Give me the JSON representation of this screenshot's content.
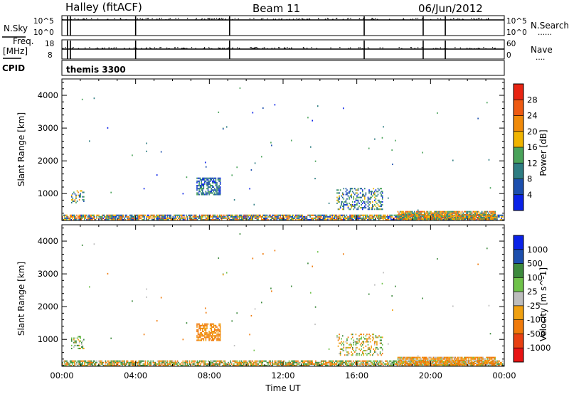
{
  "header": {
    "station": "Halley (fitACF)",
    "beam": "Beam 11",
    "date": "06/Jun/2012"
  },
  "status_panels": {
    "nsky_label": "N.Sky",
    "nsky_ticks": [
      "10^5",
      "10^0"
    ],
    "nsearch_label": "N.Search",
    "nsearch_ticks": [
      "10^5",
      "10^0"
    ],
    "freq_label": "Freq.",
    "freq_unit": "[MHz]",
    "freq_ticks": [
      "18",
      "8"
    ],
    "nave_label": "Nave",
    "nave_ticks": [
      "60",
      "0"
    ],
    "cpid_label": "CPID",
    "program": "themis 3300",
    "legend_dots": "......",
    "legend_dots_short": "...."
  },
  "chart_data": [
    {
      "type": "heatmap",
      "title": "",
      "quantity": "Power",
      "xlabel": "Time UT",
      "ylabel": "Slant Range [km]",
      "xlim_hours": [
        0,
        24
      ],
      "x_tick_labels": [
        "00:00",
        "04:00",
        "08:00",
        "12:00",
        "16:00",
        "20:00",
        "00:00"
      ],
      "ylim_km": [
        180,
        4500
      ],
      "y_ticks": [
        1000,
        2000,
        3000,
        4000
      ],
      "colorbar": {
        "label": "Power [dB]",
        "ticks": [
          "4",
          "8",
          "12",
          "16",
          "20",
          "24",
          "28"
        ],
        "colors": [
          "#0a22e8",
          "#1c4fae",
          "#2e7d82",
          "#4aa35a",
          "#f0b400",
          "#f08a0a",
          "#ee5a12",
          "#e82412"
        ]
      },
      "scatter_regions": [
        {
          "t_start": 0.0,
          "t_end": 23.9,
          "r_start": 180,
          "r_end": 330,
          "value_range": [
            2,
            28
          ],
          "density": 0.8
        },
        {
          "t_start": 7.3,
          "t_end": 8.6,
          "r_start": 950,
          "r_end": 1450,
          "value_range": [
            2,
            14
          ],
          "density": 0.65
        },
        {
          "t_start": 14.9,
          "t_end": 17.4,
          "r_start": 500,
          "r_end": 1150,
          "value_range": [
            2,
            18
          ],
          "density": 0.35
        },
        {
          "t_start": 18.2,
          "t_end": 23.5,
          "r_start": 200,
          "r_end": 460,
          "value_range": [
            8,
            28
          ],
          "density": 0.85
        },
        {
          "t_start": 0.5,
          "t_end": 1.2,
          "r_start": 700,
          "r_end": 1100,
          "value_range": [
            4,
            22
          ],
          "density": 0.35
        }
      ]
    },
    {
      "type": "heatmap",
      "title": "",
      "quantity": "Velocity",
      "xlabel": "Time UT",
      "ylabel": "Slant Range [km]",
      "xlim_hours": [
        0,
        24
      ],
      "x_tick_labels": [
        "00:00",
        "04:00",
        "08:00",
        "12:00",
        "16:00",
        "20:00",
        "00:00"
      ],
      "ylim_km": [
        180,
        4500
      ],
      "y_ticks": [
        1000,
        2000,
        3000,
        4000
      ],
      "colorbar": {
        "label": "Velocity [m s^-1]",
        "ticks": [
          "1000",
          "500",
          "100",
          "25",
          "-25",
          "-100",
          "-500",
          "-1000"
        ],
        "colors": [
          "#0a22e8",
          "#1c4fae",
          "#3d8a3d",
          "#6fc24a",
          "#bdbdbd",
          "#f0a010",
          "#f07a0a",
          "#e84012",
          "#e81414"
        ]
      },
      "scatter_regions": [
        {
          "t_start": 0.0,
          "t_end": 23.9,
          "r_start": 180,
          "r_end": 330,
          "value_range": [
            -300,
            300
          ],
          "density": 0.75
        },
        {
          "t_start": 7.3,
          "t_end": 8.6,
          "r_start": 950,
          "r_end": 1450,
          "value_range": [
            -200,
            -60
          ],
          "density": 0.65
        },
        {
          "t_start": 14.9,
          "t_end": 17.4,
          "r_start": 500,
          "r_end": 1150,
          "value_range": [
            -150,
            150
          ],
          "density": 0.3
        },
        {
          "t_start": 18.2,
          "t_end": 23.5,
          "r_start": 200,
          "r_end": 460,
          "value_range": [
            -200,
            40
          ],
          "density": 0.85
        },
        {
          "t_start": 0.5,
          "t_end": 1.2,
          "r_start": 700,
          "r_end": 1100,
          "value_range": [
            -60,
            200
          ],
          "density": 0.35
        }
      ]
    }
  ]
}
